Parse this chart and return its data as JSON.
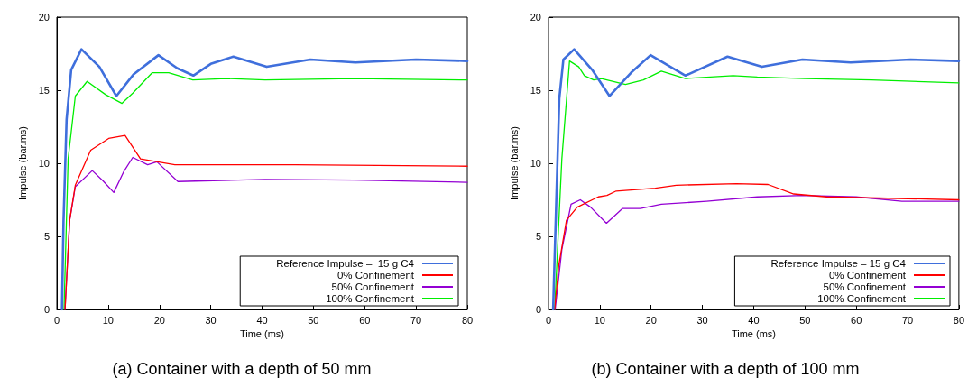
{
  "chart_data": [
    {
      "type": "line",
      "title": "(a) Container with a depth of 50 mm",
      "xlabel": "Time (ms)",
      "ylabel": "Impulse (bar.ms)",
      "xlim": [
        0,
        80
      ],
      "xticks": [
        0,
        10,
        20,
        30,
        40,
        50,
        60,
        70,
        80
      ],
      "ylim": [
        0,
        20
      ],
      "yticks": [
        0,
        5,
        10,
        15,
        20
      ],
      "grid": false,
      "legend": "bottom right",
      "marker": "none",
      "line_style": "solid",
      "series": [
        {
          "name": "Reference Impulse –  15 g C4",
          "color": "#3f6fdc",
          "x": [
            1,
            1.3,
            1.9,
            2.8,
            4.8,
            8.3,
            11.6,
            15,
            19.8,
            23.5,
            26.6,
            30,
            34.4,
            40.9,
            49.4,
            58.2,
            70,
            80
          ],
          "values": [
            0,
            6,
            13,
            16.4,
            17.8,
            16.6,
            14.6,
            16.1,
            17.4,
            16.5,
            16.0,
            16.8,
            17.3,
            16.6,
            17.1,
            16.9,
            17.1,
            17.0
          ]
        },
        {
          "name": "0% Confinement",
          "color": "#ff0000",
          "x": [
            1.6,
            2.5,
            3.6,
            6.6,
            10.1,
            13.3,
            16.3,
            23,
            46.5,
            80
          ],
          "values": [
            0,
            6.1,
            8.5,
            10.9,
            11.7,
            11.9,
            10.3,
            9.9,
            9.9,
            9.8
          ]
        },
        {
          "name": "50% Confinement",
          "color": "#9400d3",
          "x": [
            1.6,
            2.5,
            3.6,
            6.9,
            9,
            11.1,
            13,
            14.8,
            17.7,
            19.5,
            23.6,
            40.6,
            58,
            80
          ],
          "values": [
            0,
            6.1,
            8.4,
            9.5,
            8.8,
            8.0,
            9.4,
            10.4,
            9.9,
            10.1,
            8.75,
            8.9,
            8.85,
            8.7
          ]
        },
        {
          "name": "100% Confinement",
          "color": "#00ee00",
          "x": [
            1.4,
            2.2,
            3.6,
            5.9,
            9.5,
            12.7,
            14.8,
            18.6,
            21.8,
            26.5,
            33,
            40.6,
            58,
            80
          ],
          "values": [
            0,
            10.3,
            14.6,
            15.6,
            14.7,
            14.1,
            14.8,
            16.2,
            16.2,
            15.7,
            15.8,
            15.7,
            15.8,
            15.7
          ]
        }
      ]
    },
    {
      "type": "line",
      "title": "(b) Container with a depth of 100 mm",
      "xlabel": "Time (ms)",
      "ylabel": "Impulse (bar.ms)",
      "xlim": [
        0,
        80
      ],
      "xticks": [
        0,
        10,
        20,
        30,
        40,
        50,
        60,
        70,
        80
      ],
      "ylim": [
        0,
        20
      ],
      "yticks": [
        0,
        5,
        10,
        15,
        20
      ],
      "grid": false,
      "legend": "bottom right",
      "marker": "none",
      "line_style": "solid",
      "series": [
        {
          "name": "Reference Impulse – 15 g C4",
          "color": "#3f6fdc",
          "x": [
            0.9,
            2.1,
            2.9,
            5,
            8.5,
            11.9,
            16.1,
            19.9,
            26.7,
            34.9,
            41.6,
            49.5,
            58.9,
            70.6,
            80
          ],
          "values": [
            0,
            14.4,
            17.1,
            17.8,
            16.4,
            14.6,
            16.2,
            17.4,
            16.0,
            17.3,
            16.6,
            17.1,
            16.9,
            17.1,
            17.0
          ]
        },
        {
          "name": "0% Confinement",
          "color": "#ff0000",
          "x": [
            1.2,
            2,
            3.5,
            5.6,
            9.7,
            11.4,
            13.2,
            20.8,
            24.9,
            36.6,
            42.8,
            47.8,
            54.2,
            80
          ],
          "values": [
            0,
            3,
            6.1,
            7.0,
            7.7,
            7.8,
            8.1,
            8.3,
            8.5,
            8.6,
            8.55,
            7.9,
            7.7,
            7.5
          ]
        },
        {
          "name": "50% Confinement",
          "color": "#9400d3",
          "x": [
            1.3,
            2.6,
            4.4,
            6.2,
            8.2,
            11.3,
            14.4,
            17.9,
            22,
            30.8,
            40.7,
            49.5,
            60,
            68.9,
            80
          ],
          "values": [
            0,
            4.1,
            7.2,
            7.5,
            7.0,
            5.9,
            6.9,
            6.9,
            7.2,
            7.4,
            7.7,
            7.8,
            7.7,
            7.4,
            7.4
          ]
        },
        {
          "name": "100% Confinement",
          "color": "#00ee00",
          "x": [
            1.2,
            2.6,
            4.1,
            5.9,
            7,
            8.8,
            10.3,
            15,
            18.5,
            22,
            26.7,
            36,
            40.7,
            50,
            63,
            80
          ],
          "values": [
            0,
            10.3,
            17.0,
            16.6,
            16.0,
            15.7,
            15.8,
            15.4,
            15.7,
            16.3,
            15.8,
            16.0,
            15.9,
            15.8,
            15.7,
            15.5
          ]
        }
      ]
    }
  ]
}
